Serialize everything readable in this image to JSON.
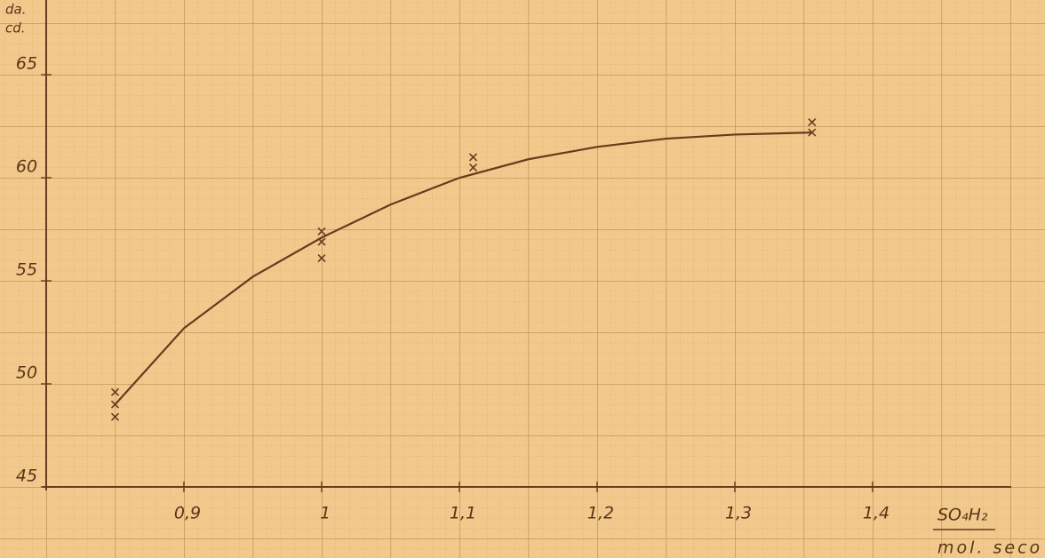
{
  "chart_data": {
    "type": "scatter",
    "y_label": [
      "da.",
      "cd."
    ],
    "x_label": [
      "SO₄H₂",
      "mol. seco"
    ],
    "xlim": [
      0.8,
      1.5
    ],
    "ylim": [
      45,
      68.5
    ],
    "xticks": [
      {
        "value": 0.9,
        "label": "0,9"
      },
      1,
      {
        "value": 1.1,
        "label": "1,1"
      },
      {
        "value": 1.2,
        "label": "1,2"
      },
      {
        "value": 1.3,
        "label": "1,3"
      },
      {
        "value": 1.4,
        "label": "1,4"
      }
    ],
    "yticks": [
      45,
      50,
      55,
      60,
      65
    ],
    "points": {
      "color": "#6b3a1e",
      "x": [
        0.85,
        0.85,
        0.85,
        1,
        1,
        1,
        1.11,
        1.11,
        1.356,
        1.356
      ],
      "y": [
        49.6,
        49.0,
        48.4,
        57.4,
        56.9,
        56.1,
        61.0,
        60.5,
        62.7,
        62.2
      ]
    },
    "curve": {
      "color": "#6b3a1e",
      "x": [
        0.85,
        0.9,
        0.95,
        1,
        1.05,
        1.1,
        1.15,
        1.2,
        1.25,
        1.3,
        1.356
      ],
      "y": [
        49.0,
        52.7,
        55.2,
        57.1,
        58.7,
        60.0,
        60.9,
        61.5,
        61.9,
        62.1,
        62.2
      ]
    }
  }
}
